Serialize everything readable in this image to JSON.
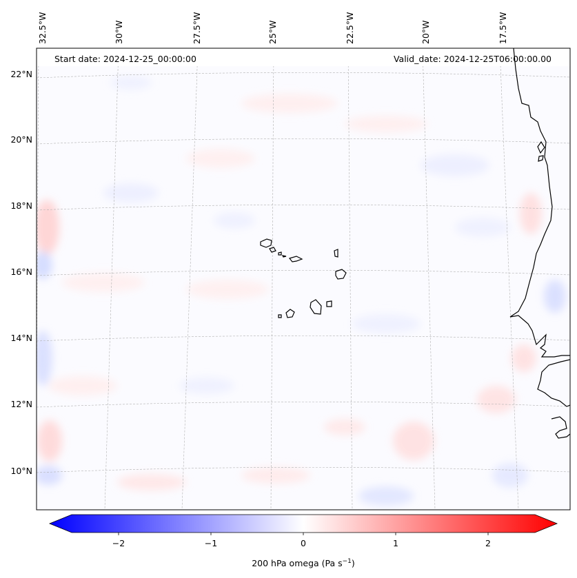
{
  "header": {
    "start_date": "Start date: 2024-12-25_00:00:00",
    "valid_date": "Valid_date: 2024-12-25T06:00:00.00"
  },
  "map": {
    "lon_labels": [
      "32.5°W",
      "30°W",
      "27.5°W",
      "25°W",
      "22.5°W",
      "20°W",
      "17.5°W"
    ],
    "lat_labels": [
      "22°N",
      "20°N",
      "18°N",
      "16°N",
      "14°N",
      "12°N",
      "10°N"
    ],
    "grid_color": "#b0b0b0",
    "coastline_color": "#000000",
    "field_positive_color": "#ffdcdc",
    "field_negative_color": "#e2e6ff"
  },
  "colorbar": {
    "tick_labels": [
      "−2",
      "−1",
      "0",
      "1",
      "2"
    ],
    "label_text": "200 hPa omega (Pa s",
    "label_sup": "−1",
    "label_close": ")",
    "colormap": "bwr",
    "min_color": "#0000ff",
    "mid_color": "#ffffff",
    "max_color": "#ff0000"
  }
}
